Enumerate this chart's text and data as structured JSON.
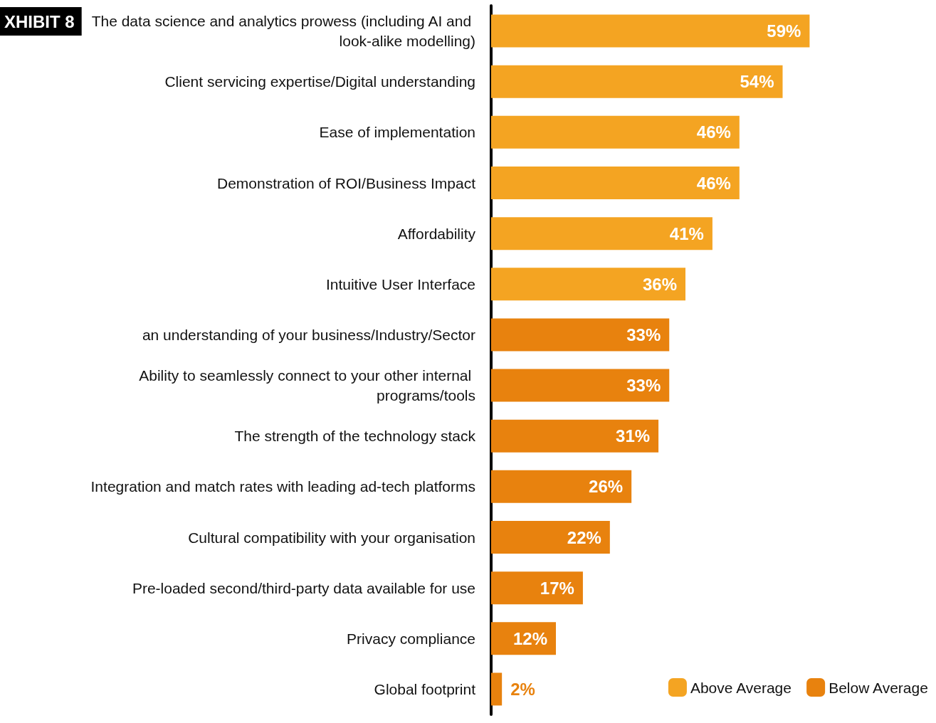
{
  "chart_data": {
    "type": "bar",
    "orientation": "horizontal",
    "title": "XHIBIT 8",
    "categories": [
      "The data science and analytics prowess (including AI and look-alike modelling)",
      "Client servicing expertise/Digital understanding",
      "Ease of implementation",
      "Demonstration of ROI/Business Impact",
      "Affordability",
      "Intuitive User Interface",
      "an understanding of your business/Industry/Sector",
      "Ability to seamlessly connect to your other internal programs/tools",
      "The strength of the technology stack",
      "Integration and match rates with leading ad-tech platforms",
      "Cultural compatibility with your organisation",
      "Pre-loaded second/third-party data available for use",
      "Privacy compliance",
      "Global footprint"
    ],
    "series": [
      {
        "name": "Above Average",
        "color": "#f4a422",
        "values": [
          59,
          54,
          46,
          46,
          41,
          36,
          null,
          null,
          null,
          null,
          null,
          null,
          null,
          null
        ],
        "value_labels": [
          "59%",
          "54%",
          "46%",
          "46%",
          "41%",
          "36%",
          null,
          null,
          null,
          null,
          null,
          null,
          null,
          null
        ]
      },
      {
        "name": "Below Average",
        "color": "#e8820e",
        "values": [
          null,
          null,
          null,
          null,
          null,
          null,
          33,
          33,
          31,
          26,
          22,
          17,
          12,
          2
        ],
        "value_labels": [
          null,
          null,
          null,
          null,
          null,
          null,
          "33%",
          "33%",
          "31%",
          "26%",
          "22%",
          "17%",
          "12%",
          "2%"
        ]
      }
    ],
    "legend": "bottom right"
  }
}
